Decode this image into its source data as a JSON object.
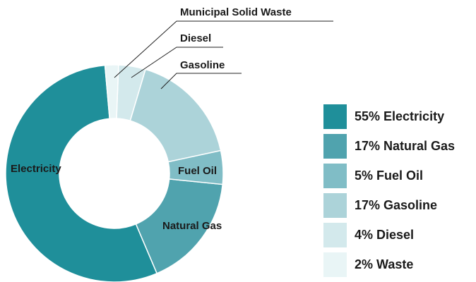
{
  "chart_data": {
    "type": "donut",
    "categories": [
      "Electricity",
      "Natural Gas",
      "Fuel Oil",
      "Gasoline",
      "Diesel",
      "Waste"
    ],
    "values": [
      55,
      17,
      5,
      17,
      4,
      2
    ],
    "value_labels": [
      "55%",
      "17%",
      "5%",
      "17%",
      "4%",
      "2%"
    ],
    "labels": [
      "Electricity",
      "Natural Gas",
      "Fuel Oil",
      "Gasoline",
      "Diesel",
      "Municipal Solid Waste"
    ],
    "colors": [
      "#1f8f9a",
      "#50a3ae",
      "#80bdc6",
      "#acd3d9",
      "#d3e9ec",
      "#e9f5f6"
    ]
  }
}
